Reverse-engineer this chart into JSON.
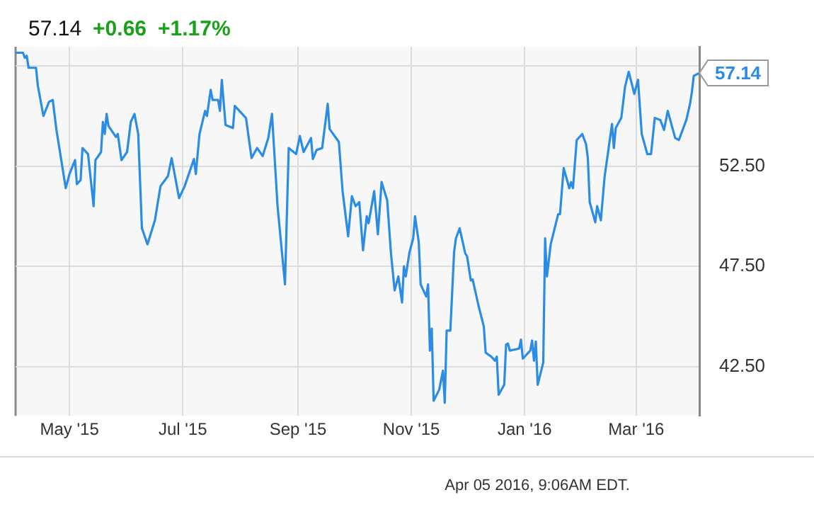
{
  "chart_data": {
    "type": "line",
    "x": [
      "2015-04-02",
      "2015-04-06",
      "2015-04-07",
      "2015-04-08",
      "2015-04-09",
      "2015-04-13",
      "2015-04-14",
      "2015-04-17",
      "2015-04-20",
      "2015-04-22",
      "2015-04-24",
      "2015-04-29",
      "2015-05-01",
      "2015-05-04",
      "2015-05-05",
      "2015-05-07",
      "2015-05-08",
      "2015-05-11",
      "2015-05-14",
      "2015-05-15",
      "2015-05-18",
      "2015-05-19",
      "2015-05-20",
      "2015-05-21",
      "2015-05-22",
      "2015-05-26",
      "2015-05-27",
      "2015-05-29",
      "2015-06-01",
      "2015-06-03",
      "2015-06-05",
      "2015-06-07",
      "2015-06-09",
      "2015-06-12",
      "2015-06-16",
      "2015-06-19",
      "2015-06-23",
      "2015-06-25",
      "2015-06-29",
      "2015-07-02",
      "2015-07-07",
      "2015-07-08",
      "2015-07-10",
      "2015-07-13",
      "2015-07-14",
      "2015-07-16",
      "2015-07-17",
      "2015-07-20",
      "2015-07-21",
      "2015-07-22",
      "2015-07-24",
      "2015-07-28",
      "2015-07-29",
      "2015-08-04",
      "2015-08-07",
      "2015-08-10",
      "2015-08-13",
      "2015-08-16",
      "2015-08-18",
      "2015-08-21",
      "2015-08-25",
      "2015-08-27",
      "2015-08-31",
      "2015-09-02",
      "2015-09-04",
      "2015-09-08",
      "2015-09-09",
      "2015-09-11",
      "2015-09-14",
      "2015-09-17",
      "2015-09-18",
      "2015-09-23",
      "2015-09-25",
      "2015-09-28",
      "2015-09-30",
      "2015-10-02",
      "2015-10-04",
      "2015-10-06",
      "2015-10-08",
      "2015-10-09",
      "2015-10-12",
      "2015-10-14",
      "2015-10-16",
      "2015-10-19",
      "2015-10-21",
      "2015-10-23",
      "2015-10-25",
      "2015-10-27",
      "2015-10-28",
      "2015-10-29",
      "2015-10-31",
      "2015-11-02",
      "2015-11-03",
      "2015-11-05",
      "2015-11-06",
      "2015-11-09",
      "2015-11-10",
      "2015-11-11",
      "2015-11-12",
      "2015-11-13",
      "2015-11-16",
      "2015-11-18",
      "2015-11-19",
      "2015-11-20",
      "2015-11-22",
      "2015-11-24",
      "2015-11-25",
      "2015-11-27",
      "2015-11-30",
      "2015-12-01",
      "2015-12-03",
      "2015-12-04",
      "2015-12-07",
      "2015-12-10",
      "2015-12-11",
      "2015-12-14",
      "2015-12-16",
      "2015-12-17",
      "2015-12-18",
      "2015-12-21",
      "2015-12-22",
      "2015-12-23",
      "2015-12-24",
      "2015-12-29",
      "2015-12-30",
      "2015-12-31",
      "2016-01-04",
      "2016-01-05",
      "2016-01-06",
      "2016-01-07",
      "2016-01-08",
      "2016-01-11",
      "2016-01-12",
      "2016-01-13",
      "2016-01-15",
      "2016-01-19",
      "2016-01-20",
      "2016-01-22",
      "2016-01-25",
      "2016-01-26",
      "2016-01-27",
      "2016-01-29",
      "2016-02-01",
      "2016-02-03",
      "2016-02-04",
      "2016-02-05",
      "2016-02-08",
      "2016-02-09",
      "2016-02-11",
      "2016-02-13",
      "2016-02-17",
      "2016-02-18",
      "2016-02-19",
      "2016-02-22",
      "2016-02-24",
      "2016-02-26",
      "2016-02-29",
      "2016-03-02",
      "2016-03-04",
      "2016-03-07",
      "2016-03-09",
      "2016-03-11",
      "2016-03-14",
      "2016-03-16",
      "2016-03-18",
      "2016-03-22",
      "2016-03-24",
      "2016-03-28",
      "2016-03-30",
      "2016-03-31",
      "2016-04-01",
      "2016-04-04"
    ],
    "values": [
      58.15,
      58.15,
      57.9,
      58.0,
      57.4,
      57.4,
      56.5,
      55.0,
      55.7,
      55.8,
      54.3,
      51.4,
      52.1,
      52.8,
      51.6,
      51.8,
      53.4,
      53.1,
      50.5,
      52.8,
      53.2,
      54.7,
      54.1,
      55.1,
      54.5,
      53.95,
      54.1,
      52.8,
      53.2,
      54.7,
      55.1,
      54.1,
      49.4,
      48.6,
      49.8,
      51.5,
      52.0,
      52.9,
      50.9,
      51.5,
      52.85,
      52.1,
      54.1,
      55.25,
      55.0,
      56.3,
      55.8,
      55.8,
      55.25,
      56.8,
      54.55,
      54.4,
      55.5,
      54.9,
      52.9,
      53.4,
      53.0,
      53.9,
      55.1,
      50.5,
      46.6,
      53.4,
      53.1,
      54.0,
      53.2,
      53.9,
      52.85,
      53.3,
      53.4,
      55.6,
      54.35,
      53.7,
      51.25,
      49.0,
      51.0,
      50.5,
      50.7,
      48.3,
      50.0,
      49.65,
      51.25,
      49.1,
      51.7,
      50.8,
      48.2,
      46.3,
      47.0,
      45.7,
      47.5,
      47.0,
      48.2,
      48.9,
      50.0,
      48.7,
      46.6,
      46.0,
      46.6,
      43.3,
      44.4,
      40.8,
      41.35,
      42.3,
      40.7,
      44.3,
      44.3,
      48.2,
      48.9,
      49.4,
      48.15,
      48.0,
      46.8,
      46.85,
      45.6,
      44.5,
      43.2,
      43.0,
      42.8,
      43.0,
      41.1,
      41.6,
      43.6,
      43.65,
      43.3,
      43.4,
      43.85,
      42.9,
      43.3,
      43.8,
      42.8,
      43.75,
      41.6,
      42.7,
      48.9,
      47.0,
      48.6,
      50.1,
      50.1,
      52.4,
      51.4,
      51.7,
      51.4,
      53.8,
      54.1,
      53.6,
      52.9,
      50.7,
      49.7,
      50.5,
      49.8,
      51.95,
      54.6,
      53.4,
      54.4,
      54.9,
      56.45,
      57.2,
      56.1,
      56.8,
      54.1,
      53.1,
      53.1,
      54.9,
      54.8,
      54.3,
      55.25,
      53.9,
      53.8,
      54.8,
      55.6,
      56.2,
      57.0,
      57.14
    ],
    "color": "#2b8ce6",
    "xlim": [
      "2015-04-02",
      "2016-04-04"
    ],
    "xticks": [
      {
        "value": "2015-05-01",
        "label": "May '15"
      },
      {
        "value": "2015-07-01",
        "label": "Jul '15"
      },
      {
        "value": "2015-09-01",
        "label": "Sep '15"
      },
      {
        "value": "2015-11-01",
        "label": "Nov '15"
      },
      {
        "value": "2016-01-01",
        "label": "Jan '16"
      },
      {
        "value": "2016-03-01",
        "label": "Mar '16"
      }
    ],
    "ylim": [
      40.05,
      58.45
    ],
    "yticks": [
      {
        "value": 42.5,
        "label": "42.50"
      },
      {
        "value": 47.5,
        "label": "47.50"
      },
      {
        "value": 52.5,
        "label": "52.50"
      },
      {
        "value": 57.5,
        "label": null
      }
    ],
    "grid": true,
    "legend": false,
    "marker": "none",
    "line_style": "solid",
    "annotations": [
      "57.14",
      "+0.66",
      "+1.17%",
      "Apr 05 2016, 9:06AM EDT.",
      {
        "text": "57.14",
        "x": "2016-04-04",
        "y": 57.14
      }
    ]
  }
}
